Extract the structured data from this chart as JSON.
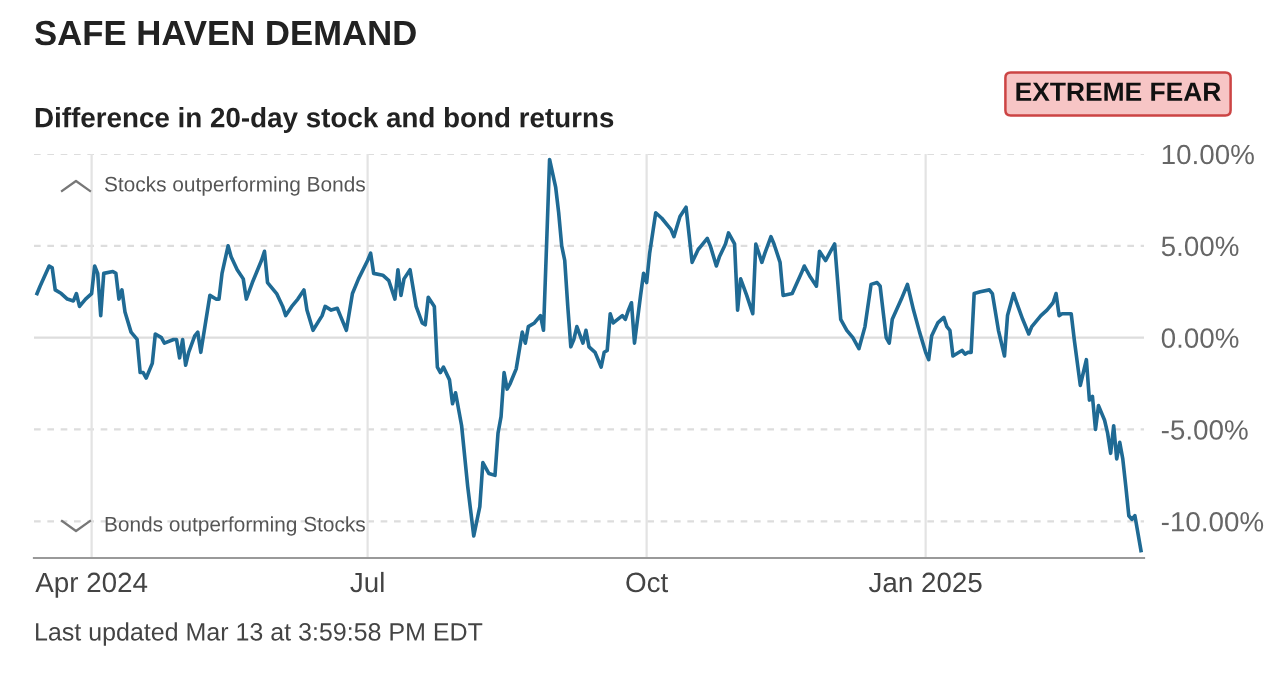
{
  "chart_data": {
    "type": "line",
    "title": "SAFE HAVEN DEMAND",
    "subtitle": "Difference in 20-day stock and bond returns",
    "annotations": [
      "Stocks outperforming Bonds",
      "Bonds outperforming Stocks",
      "EXTREME FEAR",
      "Last updated Mar 13 at 3:59:58 PM EDT"
    ],
    "x": [
      "2024-03-14",
      "2024-03-15",
      "2024-03-18",
      "2024-03-19",
      "2024-03-20",
      "2024-03-22",
      "2024-03-24",
      "2024-03-26",
      "2024-03-27",
      "2024-03-28",
      "2024-03-30",
      "2024-04-01",
      "2024-04-02",
      "2024-04-03",
      "2024-04-04",
      "2024-04-05",
      "2024-04-08",
      "2024-04-09",
      "2024-04-10",
      "2024-04-11",
      "2024-04-12",
      "2024-04-14",
      "2024-04-16",
      "2024-04-17",
      "2024-04-18",
      "2024-04-19",
      "2024-04-21",
      "2024-04-22",
      "2024-04-24",
      "2024-04-25",
      "2024-04-28",
      "2024-04-29",
      "2024-04-30",
      "2024-05-01",
      "2024-05-02",
      "2024-05-03",
      "2024-05-05",
      "2024-05-06",
      "2024-05-07",
      "2024-05-10",
      "2024-05-12",
      "2024-05-13",
      "2024-05-14",
      "2024-05-16",
      "2024-05-17",
      "2024-05-19",
      "2024-05-21",
      "2024-05-22",
      "2024-05-24",
      "2024-05-27",
      "2024-05-28",
      "2024-05-29",
      "2024-06-01",
      "2024-06-03",
      "2024-06-04",
      "2024-06-06",
      "2024-06-08",
      "2024-06-10",
      "2024-06-11",
      "2024-06-13",
      "2024-06-16",
      "2024-06-17",
      "2024-06-19",
      "2024-06-21",
      "2024-06-22",
      "2024-06-24",
      "2024-06-26",
      "2024-06-28",
      "2024-07-01",
      "2024-07-02",
      "2024-07-03",
      "2024-07-06",
      "2024-07-08",
      "2024-07-10",
      "2024-07-11",
      "2024-07-12",
      "2024-07-13",
      "2024-07-15",
      "2024-07-17",
      "2024-07-19",
      "2024-07-20",
      "2024-07-21",
      "2024-07-23",
      "2024-07-24",
      "2024-07-25",
      "2024-07-26",
      "2024-07-28",
      "2024-07-29",
      "2024-07-30",
      "2024-08-01",
      "2024-08-03",
      "2024-08-05",
      "2024-08-07",
      "2024-08-08",
      "2024-08-10",
      "2024-08-12",
      "2024-08-13",
      "2024-08-14",
      "2024-08-15",
      "2024-08-16",
      "2024-08-17",
      "2024-08-19",
      "2024-08-21",
      "2024-08-22",
      "2024-08-23",
      "2024-08-25",
      "2024-08-27",
      "2024-08-28",
      "2024-08-29",
      "2024-08-30",
      "2024-09-01",
      "2024-09-02",
      "2024-09-03",
      "2024-09-04",
      "2024-09-05",
      "2024-09-06",
      "2024-09-07",
      "2024-09-08",
      "2024-09-10",
      "2024-09-11",
      "2024-09-12",
      "2024-09-14",
      "2024-09-16",
      "2024-09-17",
      "2024-09-18",
      "2024-09-19",
      "2024-09-20",
      "2024-09-23",
      "2024-09-24",
      "2024-09-25",
      "2024-09-26",
      "2024-09-27",
      "2024-09-29",
      "2024-09-30",
      "2024-10-01",
      "2024-10-02",
      "2024-10-04",
      "2024-10-06",
      "2024-10-09",
      "2024-10-10",
      "2024-10-12",
      "2024-10-14",
      "2024-10-16",
      "2024-10-18",
      "2024-10-19",
      "2024-10-21",
      "2024-10-22",
      "2024-10-24",
      "2024-10-25",
      "2024-10-27",
      "2024-10-28",
      "2024-10-30",
      "2024-10-31",
      "2024-11-01",
      "2024-11-03",
      "2024-11-05",
      "2024-11-06",
      "2024-11-08",
      "2024-11-09",
      "2024-11-11",
      "2024-11-12",
      "2024-11-14",
      "2024-11-15",
      "2024-11-18",
      "2024-11-21",
      "2024-11-22",
      "2024-11-24",
      "2024-11-26",
      "2024-11-27",
      "2024-11-29",
      "2024-12-01",
      "2024-12-02",
      "2024-12-04",
      "2024-12-06",
      "2024-12-08",
      "2024-12-10",
      "2024-12-12",
      "2024-12-14",
      "2024-12-16",
      "2024-12-17",
      "2024-12-19",
      "2024-12-20",
      "2024-12-21",
      "2024-12-24",
      "2024-12-26",
      "2024-12-28",
      "2024-12-30",
      "2025-01-01",
      "2025-01-02",
      "2025-01-03",
      "2025-01-05",
      "2025-01-07",
      "2025-01-08",
      "2025-01-09",
      "2025-01-10",
      "2025-01-12",
      "2025-01-13",
      "2025-01-14",
      "2025-01-15",
      "2025-01-16",
      "2025-01-17",
      "2025-01-19",
      "2025-01-22",
      "2025-01-23",
      "2025-01-25",
      "2025-01-27",
      "2025-01-28",
      "2025-01-30",
      "2025-01-31",
      "2025-02-02",
      "2025-02-04",
      "2025-02-05",
      "2025-02-08",
      "2025-02-10",
      "2025-02-12",
      "2025-02-13",
      "2025-02-14",
      "2025-02-15",
      "2025-02-18",
      "2025-02-19",
      "2025-02-21",
      "2025-02-22",
      "2025-02-23",
      "2025-02-24",
      "2025-02-25",
      "2025-02-26",
      "2025-02-27",
      "2025-03-01",
      "2025-03-02",
      "2025-03-03",
      "2025-03-04",
      "2025-03-05",
      "2025-03-06",
      "2025-03-07",
      "2025-03-08",
      "2025-03-09",
      "2025-03-10",
      "2025-03-11",
      "2025-03-13"
    ],
    "series": [
      {
        "color": "#1f6a94",
        "values": [
          2.4,
          2.8,
          3.9,
          3.8,
          2.6,
          2.4,
          2.1,
          2.0,
          2.4,
          1.7,
          2.1,
          2.4,
          3.9,
          3.5,
          1.2,
          3.5,
          3.6,
          3.5,
          2.1,
          2.6,
          1.4,
          0.3,
          -0.1,
          -1.9,
          -1.9,
          -2.2,
          -1.4,
          0.2,
          0.0,
          -0.3,
          -0.1,
          -0.1,
          -1.1,
          -0.1,
          -1.5,
          -0.8,
          0.1,
          0.3,
          -0.8,
          2.3,
          2.1,
          2.1,
          3.5,
          5.0,
          4.4,
          3.7,
          3.2,
          2.1,
          3.0,
          4.2,
          4.7,
          3.0,
          2.4,
          1.7,
          1.2,
          1.7,
          2.1,
          2.6,
          1.5,
          0.4,
          1.2,
          1.7,
          1.5,
          1.6,
          1.2,
          0.4,
          2.4,
          3.2,
          4.2,
          4.6,
          3.5,
          3.4,
          3.1,
          2.1,
          3.7,
          2.3,
          3.2,
          3.7,
          1.7,
          0.8,
          0.7,
          2.2,
          1.7,
          -1.6,
          -1.9,
          -1.6,
          -2.3,
          -3.6,
          -3.0,
          -4.8,
          -8.1,
          -10.8,
          -9.2,
          -6.8,
          -7.4,
          -7.5,
          -5.2,
          -4.3,
          -1.9,
          -2.8,
          -2.5,
          -1.7,
          0.3,
          -0.3,
          0.6,
          0.8,
          1.2,
          0.4,
          5.0,
          9.7,
          8.2,
          6.8,
          5.0,
          4.2,
          1.7,
          -0.5,
          -0.1,
          0.6,
          -0.3,
          0.4,
          -0.5,
          -0.8,
          -1.6,
          -0.8,
          -0.7,
          1.3,
          0.8,
          1.2,
          1.0,
          1.5,
          1.9,
          -0.3,
          2.3,
          3.5,
          3.0,
          4.6,
          6.8,
          6.5,
          5.9,
          5.5,
          6.6,
          7.1,
          4.1,
          4.8,
          5.0,
          5.4,
          5.0,
          3.9,
          4.4,
          5.1,
          5.7,
          5.1,
          1.5,
          3.2,
          2.3,
          1.3,
          5.1,
          4.1,
          4.6,
          5.5,
          5.1,
          4.1,
          2.3,
          2.4,
          3.5,
          3.9,
          3.3,
          2.8,
          4.7,
          4.2,
          4.8,
          5.1,
          1.0,
          0.4,
          0.0,
          -0.6,
          0.6,
          2.9,
          3.0,
          2.8,
          0.0,
          -0.3,
          1.0,
          2.1,
          2.9,
          1.5,
          0.3,
          -0.8,
          -1.2,
          0.1,
          0.8,
          1.1,
          0.6,
          0.4,
          -1.0,
          -0.8,
          -0.7,
          -0.9,
          -0.8,
          -0.8,
          2.4,
          2.5,
          2.6,
          2.4,
          0.4,
          -1.0,
          1.2,
          2.4,
          1.9,
          1.0,
          0.2,
          0.6,
          1.2,
          1.5,
          1.9,
          2.4,
          1.2,
          1.3,
          1.3,
          -0.1,
          -2.6,
          -1.9,
          -1.2,
          -3.4,
          -3.2,
          -5.0,
          -3.7,
          -4.5,
          -5.2,
          -6.3,
          -4.8,
          -6.6,
          -5.7,
          -6.6,
          -8.1,
          -9.7,
          -9.9,
          -9.7,
          -11.6
        ]
      }
    ],
    "xlim": [
      "2024-03-13",
      "2025-03-14"
    ],
    "xticks": [
      {
        "value": "2024-04-01",
        "label": "Apr 2024"
      },
      {
        "value": "2024-07-01",
        "label": "Jul"
      },
      {
        "value": "2024-10-01",
        "label": "Oct"
      },
      {
        "value": "2025-01-01",
        "label": "Jan 2025"
      }
    ],
    "ylim": [
      -12,
      10
    ],
    "yticks": [
      {
        "value": 10,
        "label": "10.00%"
      },
      {
        "value": 5,
        "label": "5.00%"
      },
      {
        "value": 0,
        "label": "0.00%"
      },
      {
        "value": -5,
        "label": "-5.00%"
      },
      {
        "value": -10,
        "label": "-10.00%"
      }
    ],
    "grid": true,
    "legend": false,
    "line_style": "solid",
    "marker": "none"
  }
}
